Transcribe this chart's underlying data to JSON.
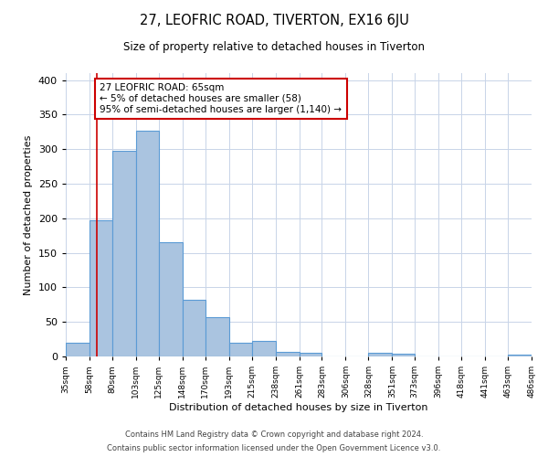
{
  "title": "27, LEOFRIC ROAD, TIVERTON, EX16 6JU",
  "subtitle": "Size of property relative to detached houses in Tiverton",
  "xlabel": "Distribution of detached houses by size in Tiverton",
  "ylabel": "Number of detached properties",
  "footer_line1": "Contains HM Land Registry data © Crown copyright and database right 2024.",
  "footer_line2": "Contains public sector information licensed under the Open Government Licence v3.0.",
  "bin_edges": [
    35,
    58,
    80,
    103,
    125,
    148,
    170,
    193,
    215,
    238,
    261,
    283,
    306,
    328,
    351,
    373,
    396,
    418,
    441,
    463,
    486
  ],
  "bin_labels": [
    "35sqm",
    "58sqm",
    "80sqm",
    "103sqm",
    "125sqm",
    "148sqm",
    "170sqm",
    "193sqm",
    "215sqm",
    "238sqm",
    "261sqm",
    "283sqm",
    "306sqm",
    "328sqm",
    "351sqm",
    "373sqm",
    "396sqm",
    "418sqm",
    "441sqm",
    "463sqm",
    "486sqm"
  ],
  "counts": [
    20,
    197,
    298,
    327,
    165,
    82,
    57,
    20,
    22,
    7,
    5,
    0,
    0,
    5,
    4,
    0,
    0,
    0,
    0,
    2
  ],
  "bar_color": "#aac4e0",
  "bar_edge_color": "#5b9bd5",
  "property_line_x": 65,
  "annotation_line1": "27 LEOFRIC ROAD: 65sqm",
  "annotation_line2": "← 5% of detached houses are smaller (58)",
  "annotation_line3": "95% of semi-detached houses are larger (1,140) →",
  "annotation_box_color": "#ffffff",
  "annotation_box_edge_color": "#cc0000",
  "line_color": "#cc0000",
  "ylim": [
    0,
    410
  ],
  "background_color": "#ffffff",
  "grid_color": "#c8d4e8"
}
